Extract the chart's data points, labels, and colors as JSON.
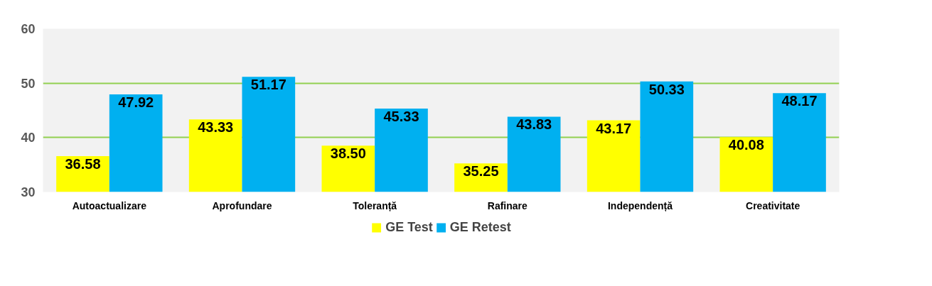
{
  "chart_data": {
    "type": "bar",
    "categories": [
      "Autoactualizare",
      "Aprofundare",
      "Toleranță",
      "Rafinare",
      "Independență",
      "Creativitate"
    ],
    "series": [
      {
        "name": "GE Test",
        "color": "#ffff00",
        "values": [
          36.58,
          43.33,
          38.5,
          35.25,
          43.17,
          40.08
        ],
        "value_labels": [
          "36.58",
          "43.33",
          "38.50",
          "35.25",
          "43.17",
          "40.08"
        ]
      },
      {
        "name": "GE Retest",
        "color": "#00b0f0",
        "values": [
          47.92,
          51.17,
          45.33,
          43.83,
          50.33,
          48.17
        ],
        "value_labels": [
          "47.92",
          "51.17",
          "45.33",
          "43.83",
          "50.33",
          "48.17"
        ]
      }
    ],
    "ylim": [
      30,
      60
    ],
    "yticks": [
      30,
      40,
      50,
      60
    ],
    "grid": "y",
    "legend": "bottom"
  }
}
